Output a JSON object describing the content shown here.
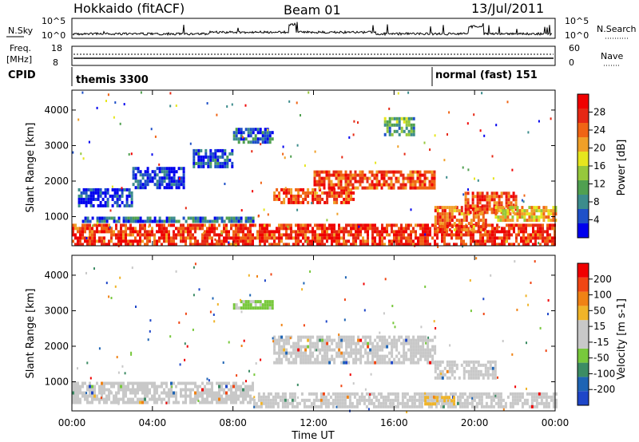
{
  "header": {
    "station": "Hokkaido (fitACF)",
    "beam": "Beam 01",
    "date": "13/Jul/2011"
  },
  "panels": {
    "nsky": {
      "label": "N.Sky",
      "tick_top": "10^5",
      "tick_bottom": "10^0",
      "right_label": "N.Search",
      "right_tick_top": "10^5",
      "right_tick_bottom": "10^0"
    },
    "freq": {
      "label_line1": "Freq.",
      "label_line2": "[MHz]",
      "tick_top": "18",
      "tick_bottom": "8",
      "right_label": "Nave",
      "right_tick_top": "60",
      "right_tick_bottom": "0"
    },
    "cpid": {
      "label": "CPID",
      "segments": [
        {
          "start_hour": 0,
          "end_hour": 18,
          "label": "themis 3300"
        },
        {
          "start_hour": 18,
          "end_hour": 24,
          "label": "normal (fast) 151"
        }
      ]
    }
  },
  "chart_data": [
    {
      "type": "heatmap",
      "quantity": "Power",
      "ylabel": "Slant Range [km]",
      "xlabel": "Time UT",
      "xlim_hours": [
        0,
        24
      ],
      "ylim": [
        180,
        4560
      ],
      "x_tick_labels": [
        "00:00",
        "04:00",
        "08:00",
        "12:00",
        "16:00",
        "20:00",
        "00:00"
      ],
      "y_ticks": [
        1000,
        2000,
        3000,
        4000
      ],
      "colorbar": {
        "title": "Power [dB]",
        "tick_labels": [
          "4",
          "8",
          "12",
          "16",
          "20",
          "24",
          "28"
        ],
        "colors": [
          "#0000ee",
          "#1e50c8",
          "#3c8c8c",
          "#50a050",
          "#96c83c",
          "#e6e61e",
          "#f0a028",
          "#f06414",
          "#e62814",
          "#f00000"
        ]
      },
      "regions": [
        {
          "t0": 0.0,
          "t1": 24.0,
          "r0": 250,
          "r1": 800,
          "level": 0.85
        },
        {
          "t0": 0.5,
          "t1": 9.0,
          "r0": 900,
          "r1": 1000,
          "level": 0.2
        },
        {
          "t0": 0.3,
          "t1": 3.0,
          "r0": 1300,
          "r1": 1800,
          "level": 0.1
        },
        {
          "t0": 3.0,
          "t1": 5.5,
          "r0": 1800,
          "r1": 2400,
          "level": 0.1
        },
        {
          "t0": 6.0,
          "t1": 8.0,
          "r0": 2400,
          "r1": 2900,
          "level": 0.15
        },
        {
          "t0": 8.0,
          "t1": 10.0,
          "r0": 3100,
          "r1": 3500,
          "level": 0.2
        },
        {
          "t0": 10.0,
          "t1": 14.0,
          "r0": 1400,
          "r1": 1800,
          "level": 0.8
        },
        {
          "t0": 12.0,
          "t1": 18.0,
          "r0": 1800,
          "r1": 2300,
          "level": 0.8
        },
        {
          "t0": 15.5,
          "t1": 17.0,
          "r0": 3300,
          "r1": 3800,
          "level": 0.35
        },
        {
          "t0": 18.0,
          "t1": 20.5,
          "r0": 600,
          "r1": 1300,
          "level": 0.75
        },
        {
          "t0": 19.5,
          "t1": 22.0,
          "r0": 1100,
          "r1": 1700,
          "level": 0.8
        },
        {
          "t0": 21.0,
          "t1": 24.0,
          "r0": 900,
          "r1": 1300,
          "level": 0.6
        }
      ]
    },
    {
      "type": "heatmap",
      "quantity": "Velocity",
      "ylabel": "Slant Range [km]",
      "xlabel": "Time UT",
      "xlim_hours": [
        0,
        24
      ],
      "ylim": [
        180,
        4560
      ],
      "x_tick_labels": [
        "00:00",
        "04:00",
        "08:00",
        "12:00",
        "16:00",
        "20:00",
        "00:00"
      ],
      "y_ticks": [
        1000,
        2000,
        3000,
        4000
      ],
      "colorbar": {
        "title": "Velocity [m s-1]",
        "tick_labels": [
          "200",
          "100",
          "50",
          "15",
          "-15",
          "-50",
          "-100",
          "-200"
        ],
        "colors": [
          "#1e46c8",
          "#1e64b4",
          "#3c8c64",
          "#78c83c",
          "#c8c8c8",
          "#c8c8c8",
          "#f0b428",
          "#f08214",
          "#f04614",
          "#f00000"
        ]
      },
      "regions": [
        {
          "t0": 0.0,
          "t1": 9.0,
          "r0": 400,
          "r1": 1000,
          "class": "ground"
        },
        {
          "t0": 9.0,
          "t1": 24.0,
          "r0": 300,
          "r1": 700,
          "class": "ground"
        },
        {
          "t0": 10.0,
          "t1": 18.0,
          "r0": 1500,
          "r1": 2300,
          "class": "ground"
        },
        {
          "t0": 18.0,
          "t1": 21.0,
          "r0": 1100,
          "r1": 1600,
          "class": "ground"
        },
        {
          "t0": 8.0,
          "t1": 10.0,
          "r0": 3100,
          "r1": 3300,
          "class": "green"
        },
        {
          "t0": 17.5,
          "t1": 19.0,
          "r0": 400,
          "r1": 600,
          "class": "orange"
        }
      ]
    }
  ]
}
